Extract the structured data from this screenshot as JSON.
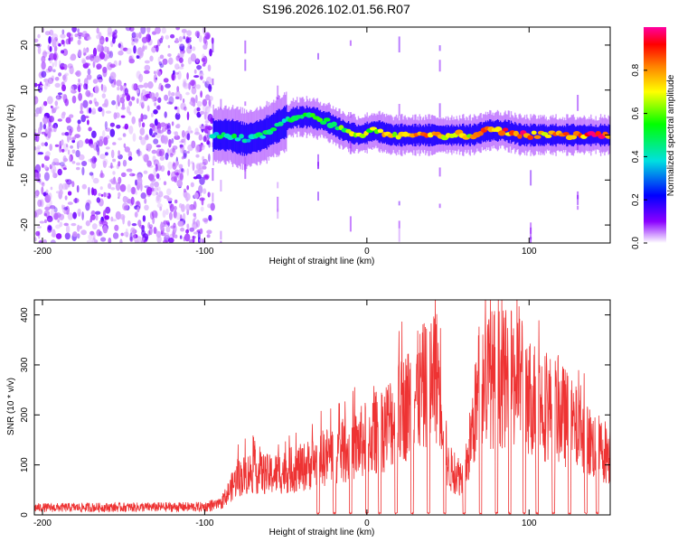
{
  "chart_data": [
    {
      "type": "heatmap",
      "title": "S196.2026.102.01.56.R07",
      "xlabel": "Height of straight line (km)",
      "ylabel": "Frequency (Hz)",
      "xlim": [
        -205,
        150
      ],
      "ylim": [
        -24,
        24
      ],
      "xticks": [
        -200,
        -100,
        0,
        100
      ],
      "yticks": [
        -20,
        -10,
        0,
        10,
        20
      ],
      "colorbar": {
        "label": "Normalized spectral amplitude",
        "range": [
          0,
          1
        ],
        "ticks": [
          "0.0",
          "0.2",
          "0.4",
          "0.6",
          "0.8"
        ]
      },
      "noise_region": {
        "x_range": [
          -205,
          -95
        ],
        "description_level": 0.3
      },
      "ridge": [
        {
          "x": -95,
          "freq": 0,
          "amp": 0.45
        },
        {
          "x": -85,
          "freq": 0,
          "amp": 0.5
        },
        {
          "x": -75,
          "freq": -1,
          "amp": 0.45
        },
        {
          "x": -65,
          "freq": 0,
          "amp": 0.45
        },
        {
          "x": -55,
          "freq": 2,
          "amp": 0.5
        },
        {
          "x": -45,
          "freq": 4,
          "amp": 0.5
        },
        {
          "x": -35,
          "freq": 4,
          "amp": 0.55
        },
        {
          "x": -25,
          "freq": 3,
          "amp": 0.55
        },
        {
          "x": -15,
          "freq": 1,
          "amp": 0.6
        },
        {
          "x": -5,
          "freq": 0,
          "amp": 0.7
        },
        {
          "x": 5,
          "freq": 1,
          "amp": 0.7
        },
        {
          "x": 15,
          "freq": 0,
          "amp": 0.75
        },
        {
          "x": 25,
          "freq": 0,
          "amp": 0.8
        },
        {
          "x": 35,
          "freq": 0,
          "amp": 0.85
        },
        {
          "x": 45,
          "freq": 0,
          "amp": 0.8
        },
        {
          "x": 55,
          "freq": 0,
          "amp": 0.75
        },
        {
          "x": 65,
          "freq": 0,
          "amp": 0.8
        },
        {
          "x": 75,
          "freq": 1,
          "amp": 0.9
        },
        {
          "x": 85,
          "freq": 1,
          "amp": 0.9
        },
        {
          "x": 95,
          "freq": 0,
          "amp": 0.95
        },
        {
          "x": 105,
          "freq": 0,
          "amp": 0.85
        },
        {
          "x": 115,
          "freq": 0,
          "amp": 0.85
        },
        {
          "x": 125,
          "freq": 0,
          "amp": 0.85
        },
        {
          "x": 135,
          "freq": 0,
          "amp": 0.9
        },
        {
          "x": 145,
          "freq": 0,
          "amp": 0.9
        }
      ]
    },
    {
      "type": "line",
      "xlabel": "Height of straight line (km)",
      "ylabel": "SNR (10 * v/v)",
      "xlim": [
        -205,
        150
      ],
      "ylim": [
        0,
        430
      ],
      "xticks": [
        -200,
        -100,
        0,
        100
      ],
      "yticks": [
        0,
        100,
        200,
        300,
        400
      ],
      "series": [
        {
          "name": "SNR",
          "color": "#ee3333",
          "envelope": {
            "x": [
              -205,
              -100,
              -90,
              -80,
              -70,
              -60,
              -50,
              -40,
              -30,
              -20,
              -10,
              0,
              10,
              20,
              30,
              40,
              45,
              50,
              60,
              70,
              80,
              90,
              95,
              100,
              110,
              120,
              130,
              140,
              150
            ],
            "y": [
              18,
              20,
              30,
              100,
              120,
              110,
              120,
              130,
              150,
              170,
              180,
              210,
              240,
              280,
              330,
              370,
              380,
              130,
              100,
              370,
              380,
              370,
              390,
              330,
              300,
              280,
              230,
              190,
              170
            ]
          },
          "dropouts_x": [
            -30,
            -20,
            -10,
            0,
            8,
            18,
            28,
            38,
            48,
            60,
            70,
            80,
            88,
            97,
            105,
            115,
            125,
            135,
            142
          ]
        }
      ]
    }
  ]
}
